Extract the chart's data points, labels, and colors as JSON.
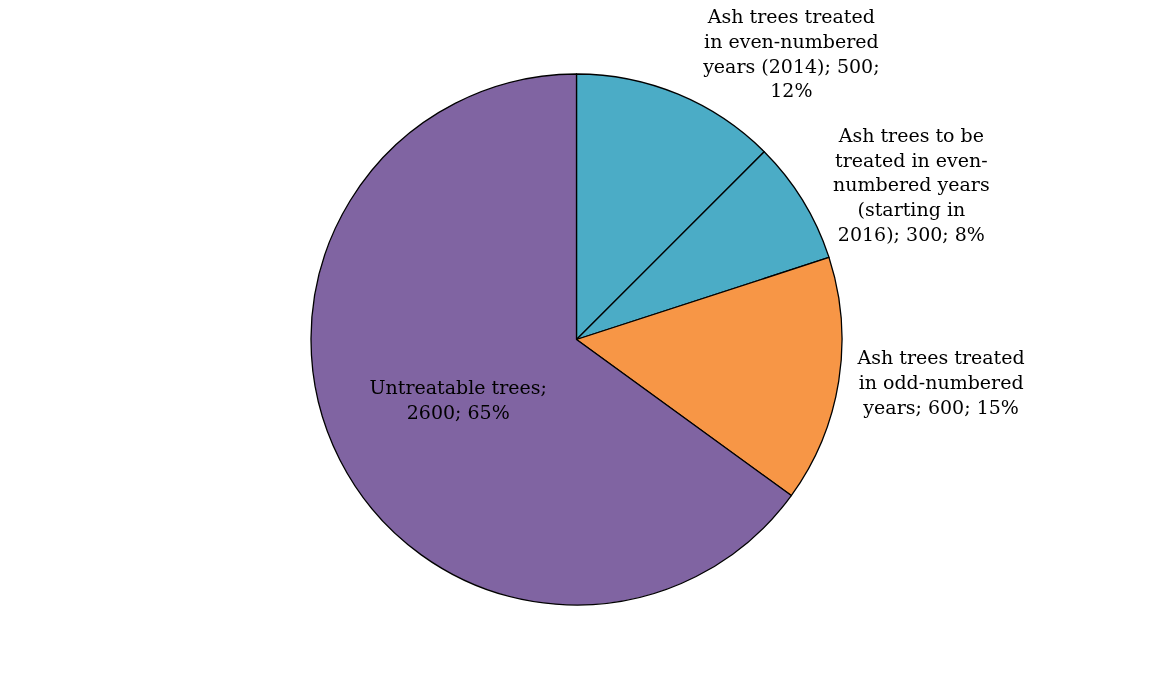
{
  "chart_data": {
    "type": "pie",
    "categories": [
      "Ash trees treated in even-numbered years (2014); 500; 12%",
      "Ash trees to be treated in even-numbered years (starting in 2016); 300; 8%",
      "Ash trees treated in odd-numbered years; 600; 15%",
      "Untreatable trees; 2600; 65%"
    ],
    "values": [
      500,
      300,
      600,
      2600
    ],
    "colors": [
      "#4bacc6",
      "#4bacc6",
      "#f79646",
      "#8064a2"
    ],
    "legend": false
  }
}
